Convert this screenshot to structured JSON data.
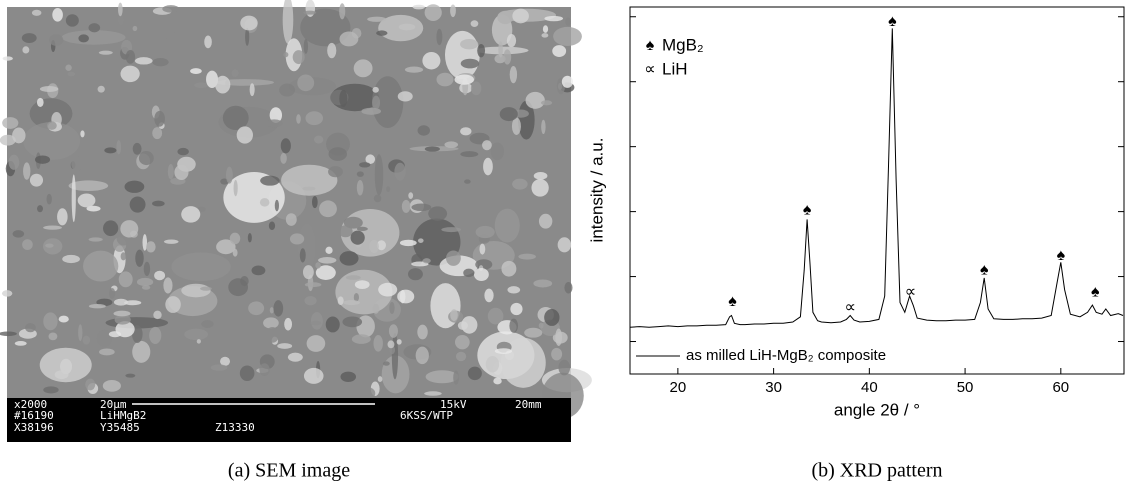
{
  "sem": {
    "labels": {
      "row1": [
        "x2000",
        "20µm",
        "15kV",
        "20mm"
      ],
      "row2": [
        "#16190",
        "LiHMgB2",
        "6KSS/WTP"
      ],
      "row3": [
        "X38196",
        "Y35485",
        "Z13330"
      ]
    }
  },
  "captions": [
    "(a) SEM image",
    "(b) XRD pattern"
  ],
  "chart_data": {
    "type": "line",
    "xlabel": "angle 2θ / °",
    "ylabel": "intensity / a.u.",
    "x": [
      15,
      16,
      17,
      18,
      19,
      20,
      21,
      22,
      23,
      24,
      25,
      25.4,
      25.6,
      25.9,
      26.5,
      27,
      28,
      29,
      30,
      31,
      32,
      32.8,
      33.2,
      33.5,
      33.8,
      34.1,
      34.6,
      35,
      36,
      37,
      37.6,
      38,
      38.4,
      39,
      40,
      41,
      41.6,
      42,
      42.4,
      42.8,
      43.2,
      43.7,
      44.2,
      44.6,
      45,
      46,
      47,
      48,
      49,
      50,
      51,
      51.6,
      52,
      52.4,
      53,
      54,
      55,
      56,
      57,
      58,
      59,
      59.6,
      60,
      60.4,
      61,
      62,
      62.8,
      63.3,
      63.7,
      64.3,
      64.7,
      65.2,
      66,
      66.5
    ],
    "series": [
      {
        "name": "as milled LiH-MgB₂ composite",
        "color": "#000000",
        "values": [
          0.72,
          0.73,
          0.72,
          0.73,
          0.74,
          0.73,
          0.74,
          0.74,
          0.75,
          0.75,
          0.76,
          0.88,
          0.9,
          0.78,
          0.76,
          0.76,
          0.77,
          0.77,
          0.78,
          0.78,
          0.8,
          0.88,
          1.6,
          2.38,
          1.7,
          0.95,
          0.82,
          0.8,
          0.79,
          0.8,
          0.84,
          0.9,
          0.83,
          0.8,
          0.81,
          0.84,
          1.2,
          3.2,
          5.32,
          3.0,
          1.1,
          0.95,
          1.2,
          1.05,
          0.86,
          0.83,
          0.82,
          0.82,
          0.83,
          0.83,
          0.84,
          1.1,
          1.48,
          1.0,
          0.85,
          0.84,
          0.84,
          0.85,
          0.85,
          0.86,
          0.9,
          1.4,
          1.72,
          1.3,
          0.92,
          0.88,
          0.95,
          1.06,
          0.95,
          0.92,
          1.0,
          0.9,
          0.93,
          0.9
        ]
      }
    ],
    "xlim": [
      15,
      66.6
    ],
    "xticks": [
      20,
      30,
      40,
      50,
      60
    ],
    "ylim": [
      0,
      5.65
    ],
    "yticks": [
      0.5,
      1.5,
      2.5,
      3.5,
      4.5,
      5.5
    ],
    "legend": "lower left",
    "phase_legend": [
      {
        "symbol": "♠",
        "label": "MgB₂"
      },
      {
        "symbol": "∝",
        "label": "LiH"
      }
    ],
    "annotations": [
      {
        "text": "♠",
        "x": 25.7,
        "y": 1.11
      },
      {
        "text": "♠",
        "x": 33.5,
        "y": 2.52
      },
      {
        "text": "∝",
        "x": 38,
        "y": 1.02
      },
      {
        "text": "♠",
        "x": 42.4,
        "y": 5.42
      },
      {
        "text": "∝",
        "x": 44.3,
        "y": 1.26
      },
      {
        "text": "♠",
        "x": 52,
        "y": 1.6
      },
      {
        "text": "♠",
        "x": 60,
        "y": 1.82
      },
      {
        "text": "♠",
        "x": 63.6,
        "y": 1.26
      }
    ]
  }
}
